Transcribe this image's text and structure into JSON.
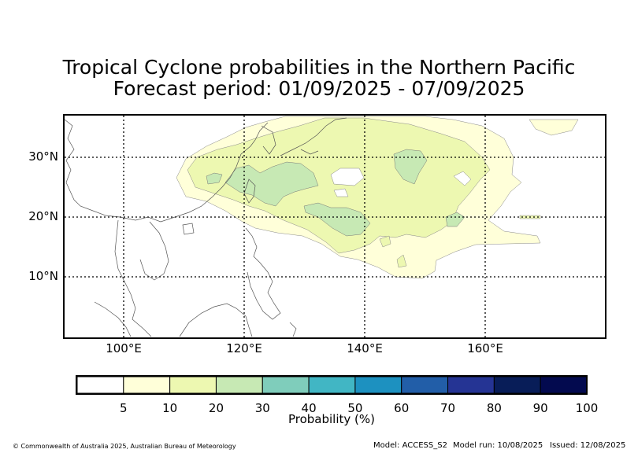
{
  "title": "Tropical Cyclone probabilities in the Northern Pacific",
  "subtitle": "Forecast period: 01/09/2025 - 07/09/2025",
  "map": {
    "lat_labels": [
      "30°N",
      "20°N",
      "10°N"
    ],
    "lat_values": [
      30,
      20,
      10
    ],
    "lon_labels": [
      "100°E",
      "120°E",
      "140°E",
      "160°E"
    ],
    "lon_values": [
      100,
      120,
      140,
      160
    ],
    "extent": {
      "lon_min": 90,
      "lon_max": 180,
      "lat_min": 0,
      "lat_max": 37
    },
    "gridlines": "dotted"
  },
  "colorbar": {
    "label": "Probability (%)",
    "ticks": [
      "5",
      "10",
      "20",
      "30",
      "40",
      "50",
      "60",
      "70",
      "80",
      "90",
      "100"
    ],
    "colors": [
      "#ffffff",
      "#ffffd9",
      "#edf8b1",
      "#c7e9b4",
      "#7fcdbb",
      "#41b6c4",
      "#1d91c0",
      "#225ea8",
      "#253494",
      "#081d58",
      "#030a4f"
    ]
  },
  "colors": {
    "level_5": "#ffffd9",
    "level_10": "#edf8b1",
    "level_20": "#c7e9b4",
    "coast": "#555555"
  },
  "footer": {
    "copyright": "© Commonwealth of Australia 2025, Australian Bureau of Meteorology",
    "model": "Model: ACCESS_S2",
    "model_run": "Model run: 10/08/2025",
    "issued": "Issued: 12/08/2025"
  }
}
